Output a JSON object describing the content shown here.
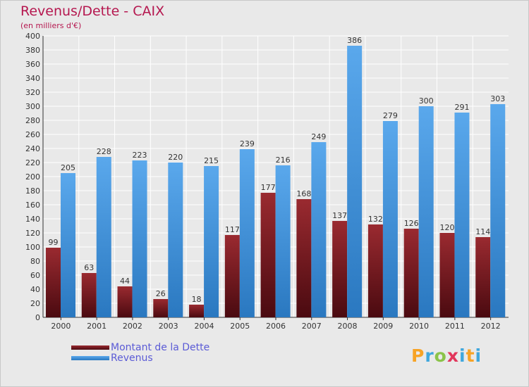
{
  "header": {
    "title": "Revenus/Dette - CAIX",
    "subtitle": "(en milliers d'€)"
  },
  "colors": {
    "debt": "#7a1a20",
    "revenue": "#3b8fd8",
    "title": "#b5174f",
    "legend_text": "#5b5bd6",
    "background": "#e9e9e9"
  },
  "chart_data": {
    "type": "bar",
    "title": "Revenus/Dette - CAIX",
    "subtitle": "(en milliers d'€)",
    "categories": [
      "2000",
      "2001",
      "2002",
      "2003",
      "2004",
      "2005",
      "2006",
      "2007",
      "2008",
      "2009",
      "2010",
      "2011",
      "2012"
    ],
    "series": [
      {
        "name": "Montant de la Dette",
        "values": [
          99,
          63,
          44,
          26,
          18,
          117,
          177,
          168,
          137,
          132,
          126,
          120,
          114
        ]
      },
      {
        "name": "Revenus",
        "values": [
          205,
          228,
          223,
          220,
          215,
          239,
          216,
          249,
          386,
          279,
          300,
          291,
          303
        ]
      }
    ],
    "ylim": [
      0,
      400
    ],
    "ytick_step": 20,
    "grid": true,
    "legend_position": "bottom-left",
    "xlabel": "",
    "ylabel": ""
  },
  "legend": {
    "items": [
      {
        "label": "Montant de la Dette",
        "color": "#7a1a20"
      },
      {
        "label": "Revenus",
        "color": "#3b8fd8"
      }
    ]
  },
  "logo": {
    "letters": [
      "P",
      "r",
      "o",
      "x",
      "i",
      "t",
      "i"
    ],
    "colors": [
      "#f7a325",
      "#3fa7dd",
      "#8bc34a",
      "#e2365b",
      "#3fa7dd",
      "#f7a325",
      "#3fa7dd"
    ]
  }
}
